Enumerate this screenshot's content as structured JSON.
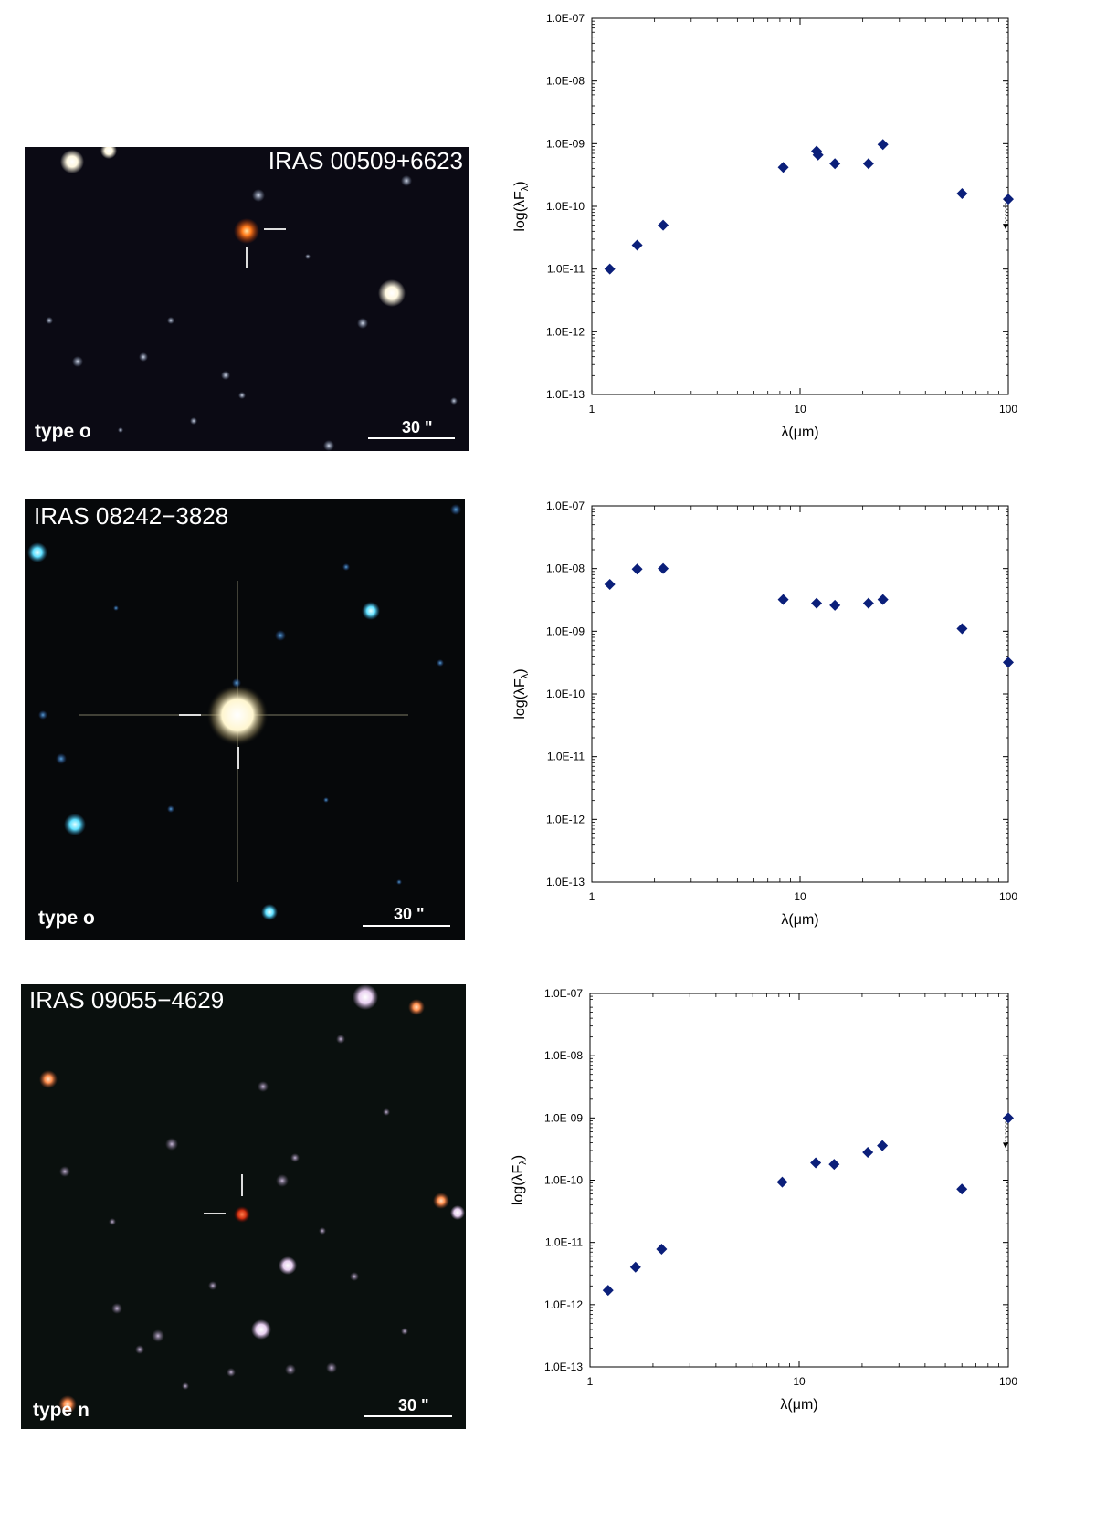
{
  "colors": {
    "marker": "#0b1f7a",
    "sky_1": "#0b0a14",
    "sky_2": "#06080a",
    "sky_3": "#0a100e"
  },
  "panels": [
    {
      "object": "IRAS 00509+6623",
      "type_label": "type o",
      "scale_label": "30 \"",
      "chart_data": {
        "type": "scatter",
        "xscale": "log",
        "yscale": "log",
        "xlim": [
          1,
          100
        ],
        "ylim": [
          1e-13,
          1e-07
        ],
        "xticks": [
          "1",
          "10",
          "100"
        ],
        "yticks": [
          "1.0E-13",
          "1.0E-12",
          "1.0E-11",
          "1.0E-10",
          "1.0E-09",
          "1.0E-08",
          "1.0E-07"
        ],
        "xlabel": "λ(μm)",
        "ylabel": "log(λF",
        "ylabel_sub": "λ",
        "points": [
          {
            "x": 1.22,
            "y": 1e-11
          },
          {
            "x": 1.65,
            "y": 2.4e-11
          },
          {
            "x": 2.2,
            "y": 5e-11
          },
          {
            "x": 8.3,
            "y": 4.2e-10
          },
          {
            "x": 12.0,
            "y": 7.6e-10
          },
          {
            "x": 12.2,
            "y": 6.6e-10
          },
          {
            "x": 14.7,
            "y": 4.8e-10
          },
          {
            "x": 21.3,
            "y": 4.8e-10
          },
          {
            "x": 25.0,
            "y": 9.7e-10
          },
          {
            "x": 60.0,
            "y": 1.6e-10
          },
          {
            "x": 100.0,
            "y": 1.3e-10,
            "upper_limit": true
          }
        ]
      }
    },
    {
      "object": "IRAS 08242−3828",
      "type_label": "type o",
      "scale_label": "30 \"",
      "chart_data": {
        "type": "scatter",
        "xscale": "log",
        "yscale": "log",
        "xlim": [
          1,
          100
        ],
        "ylim": [
          1e-13,
          1e-07
        ],
        "xticks": [
          "1",
          "10",
          "100"
        ],
        "yticks": [
          "1.0E-13",
          "1.0E-12",
          "1.0E-11",
          "1.0E-10",
          "1.0E-09",
          "1.0E-08",
          "1.0E-07"
        ],
        "xlabel": "λ(μm)",
        "ylabel": "log(λF",
        "ylabel_sub": "λ",
        "points": [
          {
            "x": 1.22,
            "y": 5.6e-09
          },
          {
            "x": 1.65,
            "y": 9.8e-09
          },
          {
            "x": 2.2,
            "y": 1e-08
          },
          {
            "x": 8.3,
            "y": 3.2e-09
          },
          {
            "x": 12.0,
            "y": 2.8e-09
          },
          {
            "x": 14.7,
            "y": 2.6e-09
          },
          {
            "x": 21.3,
            "y": 2.8e-09
          },
          {
            "x": 25.0,
            "y": 3.2e-09
          },
          {
            "x": 60.0,
            "y": 1.1e-09
          },
          {
            "x": 100.0,
            "y": 3.2e-10
          }
        ]
      }
    },
    {
      "object": "IRAS 09055−4629",
      "type_label": "type n",
      "scale_label": "30 \"",
      "chart_data": {
        "type": "scatter",
        "xscale": "log",
        "yscale": "log",
        "xlim": [
          1,
          100
        ],
        "ylim": [
          1e-13,
          1e-07
        ],
        "xticks": [
          "1",
          "10",
          "100"
        ],
        "yticks": [
          "1.0E-13",
          "1.0E-12",
          "1.0E-11",
          "1.0E-10",
          "1.0E-09",
          "1.0E-08",
          "1.0E-07"
        ],
        "xlabel": "λ(μm)",
        "ylabel": "log(λF",
        "ylabel_sub": "λ",
        "points": [
          {
            "x": 1.22,
            "y": 1.7e-12
          },
          {
            "x": 1.65,
            "y": 4e-12
          },
          {
            "x": 2.2,
            "y": 7.8e-12
          },
          {
            "x": 8.3,
            "y": 9.3e-11
          },
          {
            "x": 12.0,
            "y": 1.9e-10
          },
          {
            "x": 14.7,
            "y": 1.8e-10
          },
          {
            "x": 21.3,
            "y": 2.8e-10
          },
          {
            "x": 25.0,
            "y": 3.6e-10
          },
          {
            "x": 60.0,
            "y": 7.2e-11
          },
          {
            "x": 100.0,
            "y": 1e-09,
            "upper_limit": true
          }
        ]
      }
    }
  ]
}
